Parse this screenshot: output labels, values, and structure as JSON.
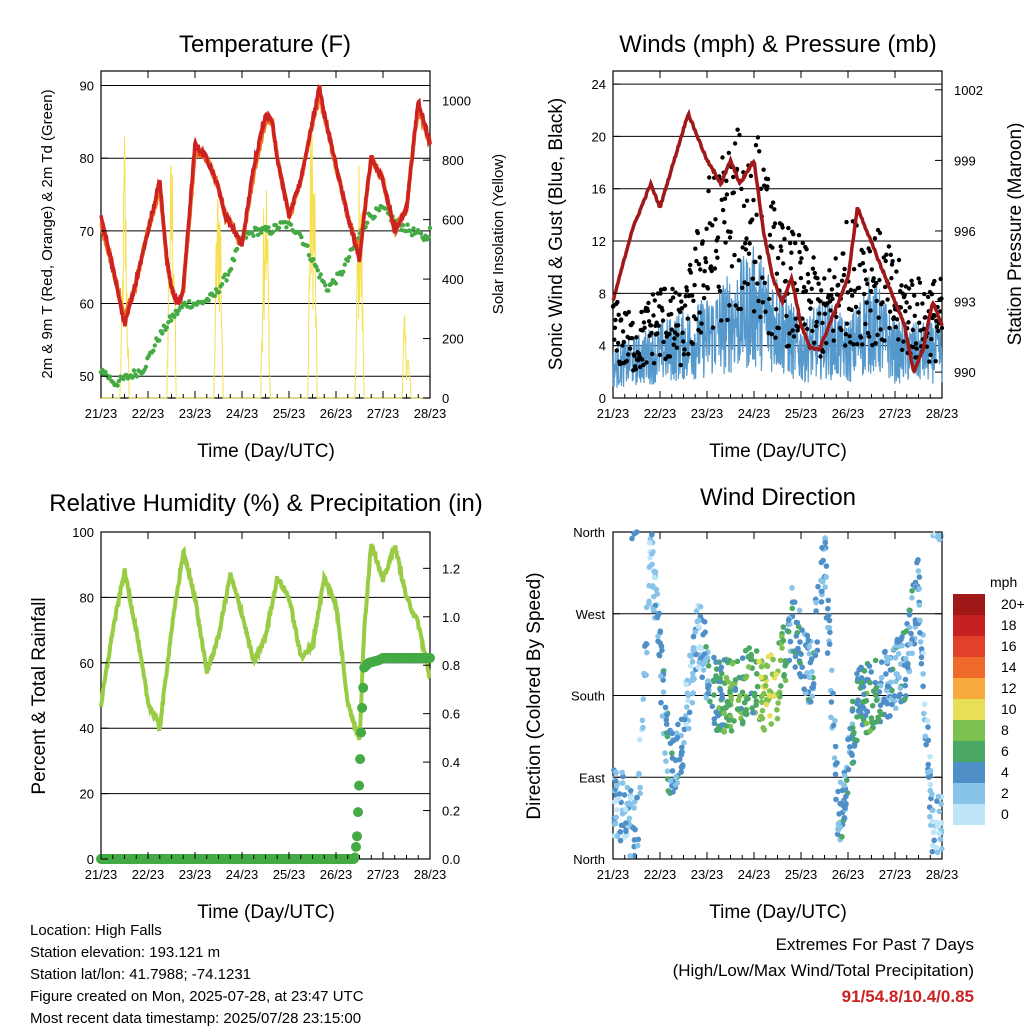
{
  "panels": {
    "temperature": {
      "title": "Temperature (F)",
      "ylabel_left": "2m & 9m T (Red, Orange) & 2m Td (Green)",
      "ylabel_right": "Solar Insolation (Yellow)",
      "xlabel": "Time (Day/UTC)"
    },
    "winds": {
      "title": "Winds (mph) & Pressure (mb)",
      "ylabel_left": "Sonic Wind & Gust (Blue, Black)",
      "ylabel_right": "Station Pressure (Maroon)",
      "xlabel": "Time (Day/UTC)"
    },
    "humidity": {
      "title": "Relative Humidity (%) & Precipitation (in)",
      "ylabel_left": "Percent & Total Rainfall",
      "xlabel": "Time (Day/UTC)"
    },
    "direction": {
      "title": "Wind Direction",
      "ylabel_left": "Direction (Colored By Speed)",
      "xlabel": "Time (Day/UTC)",
      "legend_title": "mph"
    }
  },
  "info": {
    "location": "Location: High Falls",
    "elevation": "Station elevation: 193.121 m",
    "latlon": "Station lat/lon: 41.7988; -74.1231",
    "created": "Figure created on Mon, 2025-07-28, at 23:47 UTC",
    "timestamp": "Most recent data timestamp: 2025/07/28 23:15:00"
  },
  "extremes": {
    "line1": "Extremes For Past 7 Days",
    "line2": "(High/Low/Max Wind/Total Precipitation)",
    "values": "91/54.8/10.4/0.85"
  },
  "colors": {
    "temp_2m": "#cc2222",
    "temp_9m": "#f07020",
    "dewpoint": "#44aa44",
    "solar": "#f5e050",
    "wind": "#5599cc",
    "gust": "#000000",
    "pressure": "#a01818",
    "rh": "#99cc44",
    "precip": "#44aa44"
  },
  "chart_data": [
    {
      "type": "line",
      "title": "Temperature (F)",
      "x_ticks": [
        "21/23",
        "22/23",
        "23/23",
        "24/23",
        "25/23",
        "26/23",
        "27/23",
        "28/23"
      ],
      "xlabel": "Time (Day/UTC)",
      "ylabel": "2m & 9m T (Red, Orange) & 2m Td (Green)",
      "ylim": [
        47,
        92
      ],
      "y_ticks": [
        50,
        60,
        70,
        80,
        90
      ],
      "y2label": "Solar Insolation (Yellow)",
      "y2lim": [
        0,
        1100
      ],
      "y2_ticks": [
        0,
        200,
        400,
        600,
        800,
        1000
      ],
      "grid": true,
      "series": [
        {
          "name": "2m T",
          "axis": "left",
          "x": [
            0,
            0.25,
            0.5,
            0.75,
            1,
            1.25,
            1.4,
            1.5,
            1.65,
            1.75,
            1.9,
            2,
            2.25,
            2.5,
            2.65,
            2.75,
            3,
            3.25,
            3.5,
            3.65,
            3.75,
            4,
            4.25,
            4.5,
            4.65,
            4.75,
            5,
            5.25,
            5.5,
            5.65,
            5.75,
            6,
            6.25,
            6.5,
            6.65,
            6.75,
            7
          ],
          "y": [
            72,
            65,
            57,
            63,
            70,
            77,
            66,
            62,
            60,
            62,
            74,
            82,
            80,
            76,
            72,
            71,
            68,
            79,
            86,
            85,
            80,
            72,
            77,
            85,
            90,
            86,
            79,
            72,
            66,
            75,
            80,
            77,
            70,
            73,
            82,
            88,
            82
          ]
        },
        {
          "name": "9m T",
          "axis": "left",
          "x": [
            0,
            0.25,
            0.5,
            0.75,
            1,
            1.25,
            1.4,
            1.5,
            1.65,
            1.75,
            1.9,
            2,
            2.25,
            2.5,
            2.65,
            2.75,
            3,
            3.25,
            3.5,
            3.65,
            3.75,
            4,
            4.25,
            4.5,
            4.65,
            4.75,
            5,
            5.25,
            5.5,
            5.65,
            5.75,
            6,
            6.25,
            6.5,
            6.65,
            6.75,
            7
          ],
          "y": [
            71,
            65,
            58,
            63,
            70,
            76,
            66,
            62,
            60,
            62,
            73,
            81,
            80,
            76,
            72,
            71,
            68,
            78,
            85,
            85,
            80,
            72,
            77,
            85,
            89,
            86,
            79,
            72,
            67,
            75,
            80,
            77,
            70,
            73,
            82,
            87,
            82
          ]
        },
        {
          "name": "2m Td",
          "axis": "left",
          "x": [
            0,
            0.3,
            0.6,
            0.9,
            1.2,
            1.5,
            1.8,
            2.1,
            2.4,
            2.7,
            3,
            3.3,
            3.6,
            3.9,
            4.2,
            4.5,
            4.8,
            5.1,
            5.4,
            5.7,
            6,
            6.3,
            6.6,
            6.9,
            7
          ],
          "y": [
            51,
            49,
            50,
            51,
            55,
            58,
            60,
            60,
            61,
            64,
            69,
            70,
            70,
            71,
            70,
            66,
            62,
            64,
            68,
            72,
            73,
            71,
            70,
            69,
            70
          ]
        },
        {
          "name": "Solar",
          "axis": "right",
          "x": [
            0,
            0.4,
            0.45,
            0.5,
            0.55,
            0.6,
            1,
            1.4,
            1.45,
            1.5,
            1.55,
            1.6,
            2,
            2.4,
            2.45,
            2.5,
            2.55,
            2.6,
            3,
            3.4,
            3.45,
            3.5,
            3.55,
            3.6,
            4,
            4.4,
            4.45,
            4.5,
            4.55,
            4.6,
            5,
            5.4,
            5.45,
            5.5,
            5.55,
            5.6,
            6,
            6.4,
            6.45,
            6.5,
            6.55,
            6.6,
            7
          ],
          "y": [
            0,
            0,
            400,
            1000,
            500,
            0,
            0,
            0,
            700,
            900,
            800,
            0,
            0,
            0,
            600,
            850,
            700,
            0,
            0,
            0,
            800,
            950,
            600,
            0,
            0,
            0,
            900,
            1000,
            800,
            0,
            0,
            0,
            500,
            900,
            600,
            0,
            0,
            0,
            300,
            200,
            150,
            0,
            0
          ]
        }
      ]
    },
    {
      "type": "line",
      "title": "Winds (mph) & Pressure (mb)",
      "x_ticks": [
        "21/23",
        "22/23",
        "23/23",
        "24/23",
        "25/23",
        "26/23",
        "27/23",
        "28/23"
      ],
      "xlabel": "Time (Day/UTC)",
      "ylabel": "Sonic Wind & Gust (Blue, Black)",
      "ylim": [
        0,
        25
      ],
      "y_ticks": [
        0,
        4,
        8,
        12,
        16,
        20,
        24
      ],
      "y2label": "Station Pressure (Maroon)",
      "y2lim": [
        988.9,
        1002.8
      ],
      "y2_ticks": [
        990,
        993,
        996,
        999,
        1002
      ],
      "grid": true,
      "series": [
        {
          "name": "Wind",
          "axis": "left",
          "x": [
            0,
            0.5,
            1,
            1.5,
            2,
            2.5,
            3,
            3.5,
            4,
            4.5,
            5,
            5.5,
            6,
            6.5,
            7
          ],
          "y": [
            2,
            2.5,
            3,
            3.5,
            4,
            5,
            6,
            5,
            3,
            4,
            3,
            5,
            3,
            3,
            3
          ]
        },
        {
          "name": "Gust",
          "axis": "left",
          "x": [
            0,
            0.5,
            1,
            1.5,
            2,
            2.5,
            3,
            3.5,
            4,
            4.5,
            5,
            5.5,
            6,
            6.5,
            7
          ],
          "y": [
            5,
            4,
            6,
            5,
            11,
            13,
            14,
            9,
            8,
            6,
            9,
            9,
            7,
            6,
            6
          ]
        },
        {
          "name": "Pressure",
          "axis": "right",
          "x": [
            0,
            0.4,
            0.8,
            1,
            1.3,
            1.6,
            1.8,
            2,
            2.3,
            2.5,
            2.7,
            3,
            3.2,
            3.4,
            3.6,
            3.8,
            4,
            4.2,
            4.4,
            4.6,
            4.8,
            5,
            5.2,
            5.4,
            5.6,
            5.8,
            6,
            6.2,
            6.4,
            6.6,
            6.8,
            7
          ],
          "y": [
            993,
            996,
            998,
            997,
            999,
            1001,
            1000,
            999,
            998,
            999,
            998,
            999,
            996,
            994,
            993,
            994,
            992,
            991,
            991,
            992,
            993,
            994,
            997,
            996,
            995,
            994,
            993,
            992,
            990,
            991,
            993,
            992
          ]
        }
      ]
    },
    {
      "type": "line",
      "title": "Relative Humidity (%) & Precipitation (in)",
      "x_ticks": [
        "21/23",
        "22/23",
        "23/23",
        "24/23",
        "25/23",
        "26/23",
        "27/23",
        "28/23"
      ],
      "xlabel": "Time (Day/UTC)",
      "ylabel": "Percent & Total Rainfall",
      "ylim": [
        0,
        100
      ],
      "y_ticks": [
        0,
        20,
        40,
        60,
        80,
        100
      ],
      "y2lim": [
        0,
        1.35
      ],
      "y2_ticks": [
        0.0,
        0.2,
        0.4,
        0.6,
        0.8,
        1.0,
        1.2
      ],
      "grid": true,
      "series": [
        {
          "name": "RH",
          "axis": "left",
          "x": [
            0,
            0.25,
            0.5,
            0.75,
            1,
            1.25,
            1.5,
            1.75,
            2,
            2.25,
            2.5,
            2.75,
            3,
            3.25,
            3.5,
            3.75,
            4,
            4.25,
            4.5,
            4.75,
            5,
            5.25,
            5.5,
            5.6,
            5.75,
            6,
            6.25,
            6.5,
            6.75,
            7
          ],
          "y": [
            47,
            70,
            88,
            70,
            48,
            40,
            70,
            94,
            80,
            57,
            68,
            87,
            75,
            60,
            68,
            86,
            80,
            62,
            65,
            86,
            78,
            48,
            36,
            70,
            97,
            85,
            96,
            80,
            72,
            55
          ]
        },
        {
          "name": "Precipitation",
          "axis": "right",
          "x": [
            0,
            5.4,
            5.45,
            5.5,
            5.55,
            5.6,
            5.7,
            5.9,
            6,
            6.5,
            7
          ],
          "y": [
            0,
            0,
            0.1,
            0.35,
            0.6,
            0.79,
            0.81,
            0.82,
            0.83,
            0.83,
            0.83
          ]
        }
      ]
    },
    {
      "type": "scatter",
      "title": "Wind Direction",
      "x_ticks": [
        "21/23",
        "22/23",
        "23/23",
        "24/23",
        "25/23",
        "26/23",
        "27/23",
        "28/23"
      ],
      "xlabel": "Time (Day/UTC)",
      "ylabel": "Direction (Colored By Speed)",
      "y_ticks": [
        "North",
        "East",
        "South",
        "West",
        "North"
      ],
      "ylim": [
        0,
        360
      ],
      "grid": true,
      "colorbar": {
        "title": "mph",
        "labels": [
          "0",
          "2",
          "4",
          "6",
          "8",
          "10",
          "12",
          "14",
          "16",
          "18",
          "20+"
        ],
        "colors": [
          "#bfe6f8",
          "#88c4ea",
          "#4f8fc8",
          "#4aa864",
          "#7cc050",
          "#e8df58",
          "#f8aa3c",
          "#f06a2c",
          "#e2402a",
          "#c82020",
          "#a01818"
        ]
      },
      "series": [
        {
          "name": "Direction",
          "x": [
            0.2,
            0.5,
            0.8,
            1.2,
            1.5,
            1.8,
            2.2,
            2.5,
            2.8,
            3,
            3.2,
            3.5,
            3.8,
            4.2,
            4.5,
            4.8,
            5.2,
            5.5,
            5.8,
            6.2,
            6.5,
            6.8
          ],
          "y": [
            60,
            20,
            340,
            100,
            140,
            250,
            180,
            180,
            190,
            200,
            180,
            190,
            260,
            200,
            330,
            40,
            170,
            180,
            190,
            210,
            300,
            30
          ],
          "speed": [
            2,
            3,
            2,
            4,
            3,
            2,
            5,
            7,
            6,
            6,
            9,
            8,
            4,
            4,
            3,
            3,
            5,
            6,
            3,
            4,
            3,
            2
          ]
        }
      ]
    }
  ]
}
